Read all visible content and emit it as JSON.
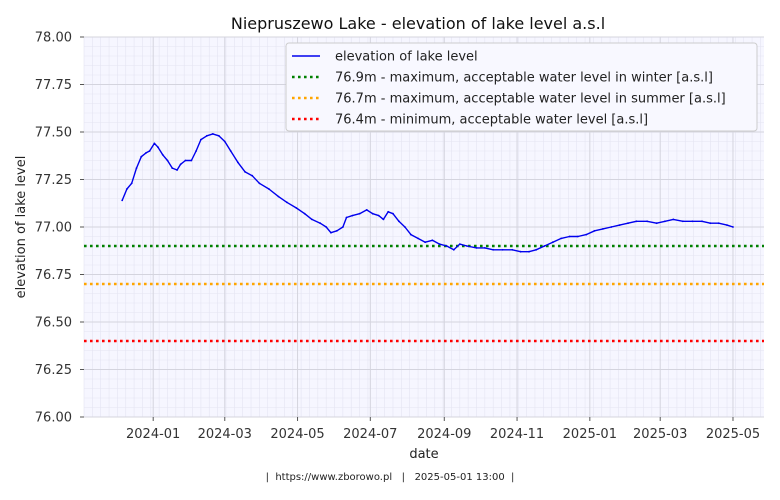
{
  "chart_data": {
    "type": "line",
    "title": "Niepruszewo Lake - elevation of lake level a.s.l",
    "xlabel": "date",
    "ylabel": "elevation of lake level",
    "xlim": [
      "2023-11-04",
      "2025-05-27"
    ],
    "ylim": [
      76.0,
      78.0
    ],
    "x_ticks": [
      "2024-01",
      "2024-03",
      "2024-05",
      "2024-07",
      "2024-09",
      "2024-11",
      "2025-01",
      "2025-03",
      "2025-05"
    ],
    "y_ticks": [
      "76.00",
      "76.25",
      "76.50",
      "76.75",
      "77.00",
      "77.25",
      "77.50",
      "77.75",
      "78.00"
    ],
    "grid": true,
    "legend_position": "top-right",
    "series": [
      {
        "name": "elevation of lake level",
        "color": "#0000ee",
        "style": "solid",
        "points": [
          [
            "2023-12-06",
            77.14
          ],
          [
            "2023-12-10",
            77.2
          ],
          [
            "2023-12-14",
            77.23
          ],
          [
            "2023-12-18",
            77.31
          ],
          [
            "2023-12-22",
            77.37
          ],
          [
            "2023-12-26",
            77.39
          ],
          [
            "2023-12-29",
            77.4
          ],
          [
            "2024-01-02",
            77.44
          ],
          [
            "2024-01-05",
            77.42
          ],
          [
            "2024-01-09",
            77.38
          ],
          [
            "2024-01-13",
            77.35
          ],
          [
            "2024-01-17",
            77.31
          ],
          [
            "2024-01-21",
            77.3
          ],
          [
            "2024-01-24",
            77.33
          ],
          [
            "2024-01-28",
            77.35
          ],
          [
            "2024-02-02",
            77.35
          ],
          [
            "2024-02-06",
            77.4
          ],
          [
            "2024-02-10",
            77.46
          ],
          [
            "2024-02-15",
            77.48
          ],
          [
            "2024-02-20",
            77.49
          ],
          [
            "2024-02-25",
            77.48
          ],
          [
            "2024-03-01",
            77.45
          ],
          [
            "2024-03-06",
            77.4
          ],
          [
            "2024-03-12",
            77.34
          ],
          [
            "2024-03-18",
            77.29
          ],
          [
            "2024-03-24",
            77.27
          ],
          [
            "2024-03-30",
            77.23
          ],
          [
            "2024-04-07",
            77.2
          ],
          [
            "2024-04-15",
            77.16
          ],
          [
            "2024-04-22",
            77.13
          ],
          [
            "2024-04-30",
            77.1
          ],
          [
            "2024-05-07",
            77.07
          ],
          [
            "2024-05-13",
            77.04
          ],
          [
            "2024-05-20",
            77.02
          ],
          [
            "2024-05-25",
            77.0
          ],
          [
            "2024-05-29",
            76.97
          ],
          [
            "2024-06-03",
            76.98
          ],
          [
            "2024-06-08",
            77.0
          ],
          [
            "2024-06-11",
            77.05
          ],
          [
            "2024-06-16",
            77.06
          ],
          [
            "2024-06-22",
            77.07
          ],
          [
            "2024-06-28",
            77.09
          ],
          [
            "2024-07-03",
            77.07
          ],
          [
            "2024-07-08",
            77.06
          ],
          [
            "2024-07-12",
            77.04
          ],
          [
            "2024-07-16",
            77.08
          ],
          [
            "2024-07-20",
            77.07
          ],
          [
            "2024-07-25",
            77.03
          ],
          [
            "2024-07-30",
            77.0
          ],
          [
            "2024-08-04",
            76.96
          ],
          [
            "2024-08-10",
            76.94
          ],
          [
            "2024-08-16",
            76.92
          ],
          [
            "2024-08-22",
            76.93
          ],
          [
            "2024-08-28",
            76.91
          ],
          [
            "2024-09-03",
            76.9
          ],
          [
            "2024-09-09",
            76.88
          ],
          [
            "2024-09-14",
            76.91
          ],
          [
            "2024-09-20",
            76.9
          ],
          [
            "2024-09-28",
            76.89
          ],
          [
            "2024-10-05",
            76.89
          ],
          [
            "2024-10-12",
            76.88
          ],
          [
            "2024-10-20",
            76.88
          ],
          [
            "2024-10-28",
            76.88
          ],
          [
            "2024-11-04",
            76.87
          ],
          [
            "2024-11-11",
            76.87
          ],
          [
            "2024-11-17",
            76.88
          ],
          [
            "2024-11-24",
            76.9
          ],
          [
            "2024-12-01",
            76.92
          ],
          [
            "2024-12-08",
            76.94
          ],
          [
            "2024-12-15",
            76.95
          ],
          [
            "2024-12-22",
            76.95
          ],
          [
            "2024-12-29",
            76.96
          ],
          [
            "2025-01-05",
            76.98
          ],
          [
            "2025-01-12",
            76.99
          ],
          [
            "2025-01-19",
            77.0
          ],
          [
            "2025-01-26",
            77.01
          ],
          [
            "2025-02-02",
            77.02
          ],
          [
            "2025-02-09",
            77.03
          ],
          [
            "2025-02-18",
            77.03
          ],
          [
            "2025-02-26",
            77.02
          ],
          [
            "2025-03-05",
            77.03
          ],
          [
            "2025-03-12",
            77.04
          ],
          [
            "2025-03-20",
            77.03
          ],
          [
            "2025-03-28",
            77.03
          ],
          [
            "2025-04-05",
            77.03
          ],
          [
            "2025-04-12",
            77.02
          ],
          [
            "2025-04-19",
            77.02
          ],
          [
            "2025-04-26",
            77.01
          ],
          [
            "2025-05-01",
            77.0
          ]
        ]
      },
      {
        "name": "76.9m - maximum, acceptable water level in winter [a.s.l]",
        "color": "#008000",
        "style": "dotted",
        "value": 76.9
      },
      {
        "name": "76.7m - maximum, acceptable water level in summer [a.s.l]",
        "color": "#ffa500",
        "style": "dotted",
        "value": 76.7
      },
      {
        "name": "76.4m - minimum, acceptable water level [a.s.l]",
        "color": "#ff0000",
        "style": "dotted",
        "value": 76.4
      }
    ]
  },
  "footer": {
    "source": "https://www.zborowo.pl",
    "timestamp": "2025-05-01 13:00"
  }
}
